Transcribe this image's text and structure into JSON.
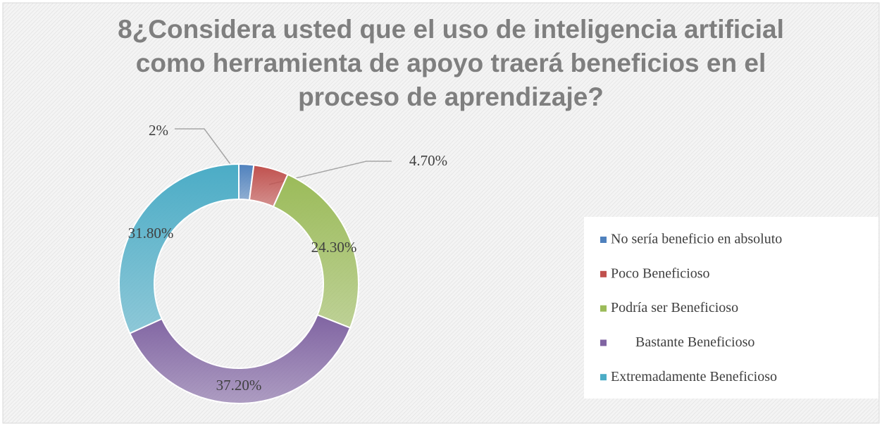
{
  "chart_data": {
    "type": "pie",
    "donut": true,
    "title": "8¿Considera usted que el uso de inteligencia artificial como herramienta de apoyo traerá beneficios en el proceso de aprendizaje?",
    "categories": [
      "No sería beneficio en absoluto",
      "Poco Beneficioso",
      "Podría ser Beneficioso",
      "Bastante Beneficioso",
      "Extremadamente Beneficioso"
    ],
    "values": [
      2,
      4.7,
      24.3,
      37.2,
      31.8
    ],
    "value_labels": [
      "2%",
      "4.70%",
      "24.30%",
      "37.20%",
      "31.80%"
    ],
    "colors": [
      "#4f81bd",
      "#c0504d",
      "#9bbb59",
      "#8064a2",
      "#4bacc6"
    ]
  }
}
